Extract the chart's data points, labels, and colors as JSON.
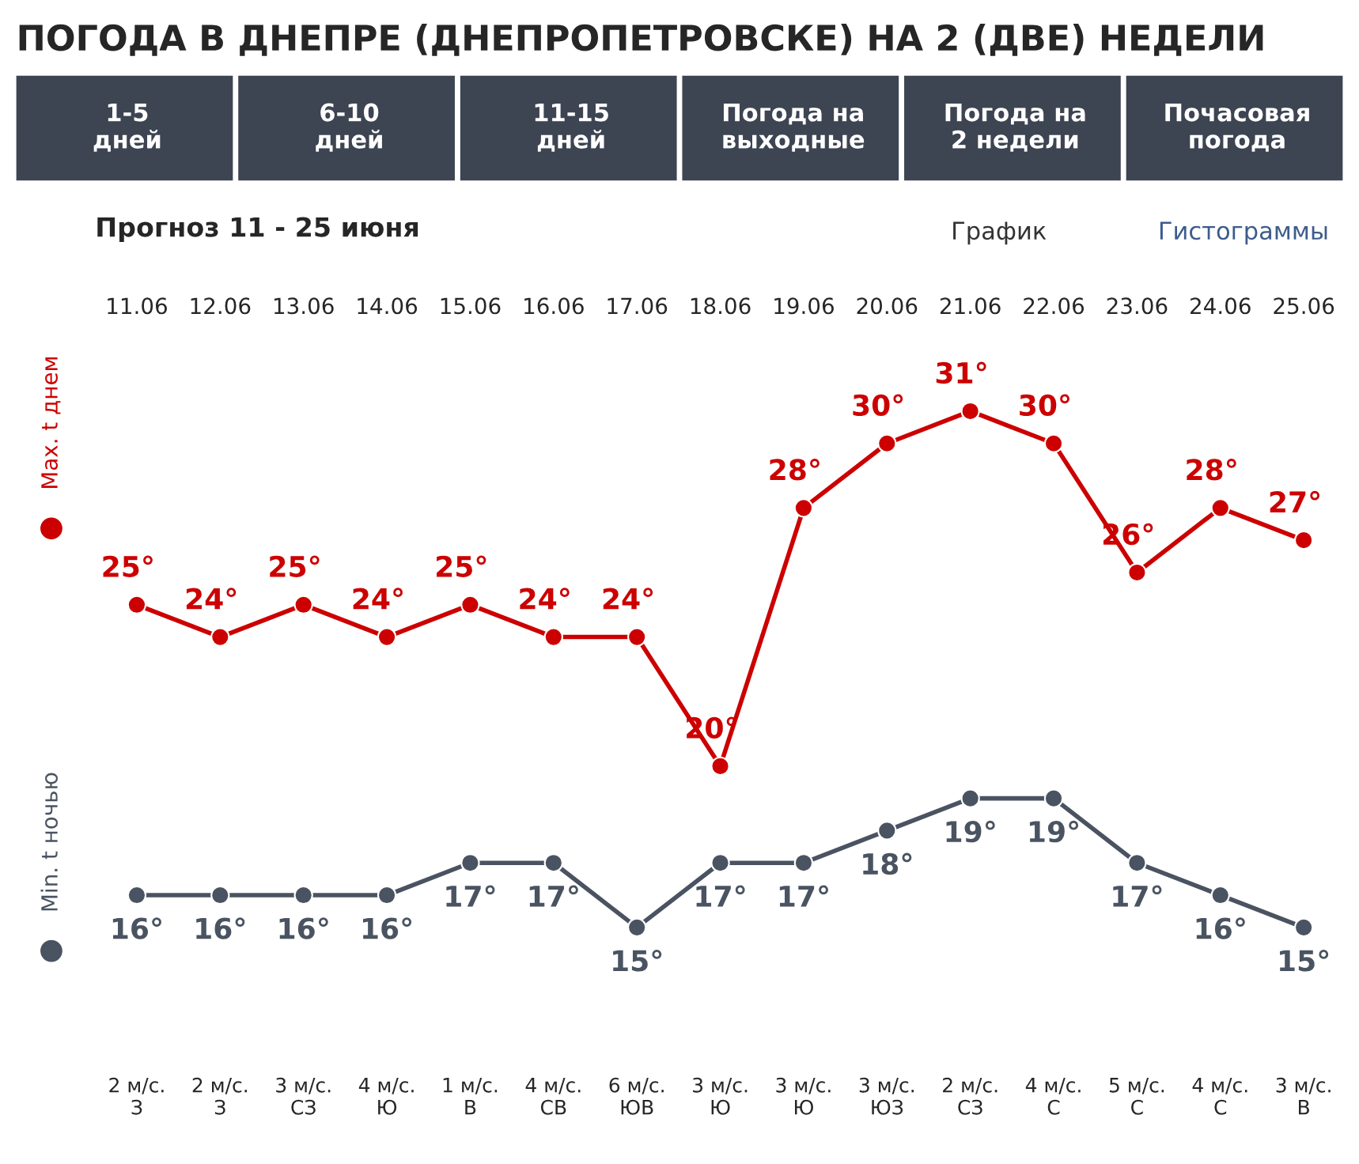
{
  "chart_data": {
    "type": "line",
    "title": "ПОГОДА В ДНЕПРЕ (ДНЕПРОПЕТРОВСКЕ) НА 2 (ДВЕ) НЕДЕЛИ",
    "subtitle": "Прогноз 11 - 25 июня",
    "categories": [
      "11.06",
      "12.06",
      "13.06",
      "14.06",
      "15.06",
      "16.06",
      "17.06",
      "18.06",
      "19.06",
      "20.06",
      "21.06",
      "22.06",
      "23.06",
      "24.06",
      "25.06"
    ],
    "series": [
      {
        "name": "Max. t днем",
        "color": "#cc0000",
        "values": [
          25,
          24,
          25,
          24,
          25,
          24,
          24,
          20,
          28,
          30,
          31,
          30,
          26,
          28,
          27
        ],
        "value_labels": [
          "25°",
          "24°",
          "25°",
          "24°",
          "25°",
          "24°",
          "24°",
          "20°",
          "28°",
          "30°",
          "31°",
          "30°",
          "26°",
          "28°",
          "27°"
        ]
      },
      {
        "name": "Min. t ночью",
        "color": "#4a5361",
        "values": [
          16,
          16,
          16,
          16,
          17,
          17,
          15,
          17,
          17,
          18,
          19,
          19,
          17,
          16,
          15
        ],
        "value_labels": [
          "16°",
          "16°",
          "16°",
          "16°",
          "17°",
          "17°",
          "15°",
          "17°",
          "17°",
          "18°",
          "19°",
          "19°",
          "17°",
          "16°",
          "15°"
        ]
      }
    ],
    "marker": "circle",
    "line_style": "solid",
    "grid": false,
    "legend": "left",
    "annotations": [
      "1-5\nдней",
      "6-10\nдней",
      "11-15\nдней",
      "Погода на\nвыходные",
      "Погода на\n2 недели",
      "Почасовая\nпогода",
      "График",
      "Гистограммы",
      "2 м/с.\nЗ",
      "2 м/с.\nЗ",
      "3 м/с.\nСЗ",
      "4 м/с.\nЮ",
      "1 м/с.\nВ",
      "4 м/с.\nСВ",
      "6 м/с.\nЮВ",
      "3 м/с.\nЮ",
      "3 м/с.\nЮ",
      "3 м/с.\nЮЗ",
      "2 м/с.\nСЗ",
      "4 м/с.\nС",
      "5 м/с.\nС",
      "4 м/с.\nС",
      "3 м/с.\nВ"
    ]
  }
}
